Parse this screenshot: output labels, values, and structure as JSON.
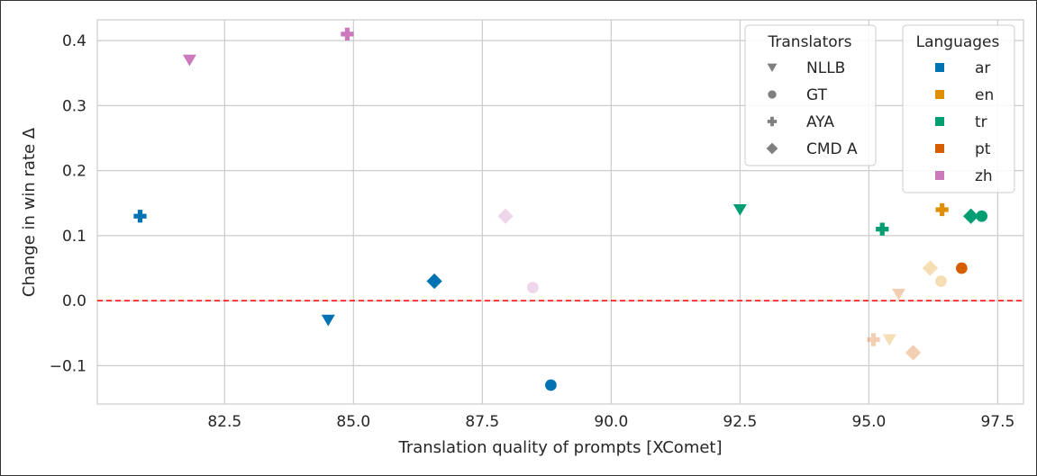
{
  "chart_data": {
    "type": "scatter",
    "title": "",
    "xlabel": "Translation quality of prompts [XComet]",
    "ylabel": "Change in win rate Δ",
    "xlim": [
      80.03,
      98.0
    ],
    "ylim": [
      -0.159,
      0.432
    ],
    "xticks": [
      82.5,
      85.0,
      87.5,
      90.0,
      92.5,
      95.0,
      97.5
    ],
    "xtick_labels": [
      "82.5",
      "85.0",
      "87.5",
      "90.0",
      "92.5",
      "95.0",
      "97.5"
    ],
    "yticks": [
      -0.1,
      0.0,
      0.1,
      0.2,
      0.3,
      0.4
    ],
    "ytick_labels": [
      "−0.1",
      "0.0",
      "0.1",
      "0.2",
      "0.3",
      "0.4"
    ],
    "grid": true,
    "reference_line": {
      "y": 0.0,
      "color": "#ff0000",
      "style": "dashed"
    },
    "translators_legend": {
      "title": "Translators",
      "placement": "top-right",
      "items": [
        {
          "label": "NLLB",
          "marker": "triangle-down"
        },
        {
          "label": "GT",
          "marker": "circle"
        },
        {
          "label": "AYA",
          "marker": "plus"
        },
        {
          "label": "CMD A",
          "marker": "diamond"
        }
      ]
    },
    "languages_legend": {
      "title": "Languages",
      "placement": "top-right",
      "items": [
        {
          "label": "ar",
          "color": "#0173b2"
        },
        {
          "label": "en",
          "color": "#de8f05"
        },
        {
          "label": "tr",
          "color": "#029e73"
        },
        {
          "label": "pt",
          "color": "#d55e00"
        },
        {
          "label": "zh",
          "color": "#cc78bc"
        }
      ]
    },
    "points": [
      {
        "lang": "ar",
        "translator": "AYA",
        "x": 80.86,
        "y": 0.13,
        "alpha": 1
      },
      {
        "lang": "zh",
        "translator": "NLLB",
        "x": 81.82,
        "y": 0.37,
        "alpha": 1
      },
      {
        "lang": "zh",
        "translator": "AYA",
        "x": 84.88,
        "y": 0.41,
        "alpha": 1
      },
      {
        "lang": "ar",
        "translator": "NLLB",
        "x": 84.51,
        "y": -0.03,
        "alpha": 1
      },
      {
        "lang": "ar",
        "translator": "CMD A",
        "x": 86.57,
        "y": 0.03,
        "alpha": 1
      },
      {
        "lang": "zh",
        "translator": "CMD A",
        "x": 87.95,
        "y": 0.13,
        "alpha": 0.3
      },
      {
        "lang": "zh",
        "translator": "GT",
        "x": 88.48,
        "y": 0.02,
        "alpha": 0.3
      },
      {
        "lang": "ar",
        "translator": "GT",
        "x": 88.83,
        "y": -0.13,
        "alpha": 1
      },
      {
        "lang": "tr",
        "translator": "NLLB",
        "x": 92.5,
        "y": 0.14,
        "alpha": 1
      },
      {
        "lang": "tr",
        "translator": "AYA",
        "x": 95.26,
        "y": 0.11,
        "alpha": 1
      },
      {
        "lang": "en",
        "translator": "AYA",
        "x": 96.42,
        "y": 0.14,
        "alpha": 1
      },
      {
        "lang": "tr",
        "translator": "CMD A",
        "x": 96.98,
        "y": 0.13,
        "alpha": 1
      },
      {
        "lang": "tr",
        "translator": "GT",
        "x": 97.19,
        "y": 0.13,
        "alpha": 1
      },
      {
        "lang": "pt",
        "translator": "GT",
        "x": 96.8,
        "y": 0.05,
        "alpha": 1
      },
      {
        "lang": "en",
        "translator": "CMD A",
        "x": 96.19,
        "y": 0.05,
        "alpha": 0.3
      },
      {
        "lang": "en",
        "translator": "GT",
        "x": 96.4,
        "y": 0.03,
        "alpha": 0.3
      },
      {
        "lang": "pt",
        "translator": "NLLB",
        "x": 95.58,
        "y": 0.01,
        "alpha": 0.3
      },
      {
        "lang": "pt",
        "translator": "AYA",
        "x": 95.09,
        "y": -0.06,
        "alpha": 0.3
      },
      {
        "lang": "en",
        "translator": "NLLB",
        "x": 95.4,
        "y": -0.06,
        "alpha": 0.3
      },
      {
        "lang": "pt",
        "translator": "CMD A",
        "x": 95.86,
        "y": -0.08,
        "alpha": 0.3
      }
    ]
  }
}
